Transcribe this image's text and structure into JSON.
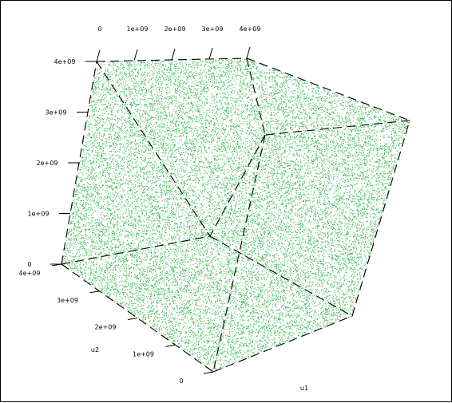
{
  "chart_data": {
    "type": "scatter",
    "dimensions": 3,
    "title": "",
    "point_color": "#2db34a",
    "point_count_approx": 40000,
    "distribution": "uniform",
    "axes": {
      "x": {
        "label": "u1",
        "range": [
          0,
          4000000000
        ],
        "ticks": [
          "0",
          "1e+09",
          "2e+09",
          "3e+09",
          "4e+09"
        ]
      },
      "y": {
        "label": "u2",
        "range": [
          0,
          4000000000
        ],
        "ticks": [
          "0",
          "1e+09",
          "2e+09",
          "3e+09",
          "4e+09"
        ]
      },
      "z": {
        "label": "",
        "range": [
          0,
          4000000000
        ],
        "ticks": [
          "0",
          "1e+09",
          "2e+09",
          "3e+09",
          "4e+09"
        ]
      }
    },
    "top_axis": {
      "ticks": [
        "0",
        "1e+09",
        "2e+09",
        "3e+09",
        "4e+09"
      ]
    },
    "grid": false,
    "box": true
  }
}
